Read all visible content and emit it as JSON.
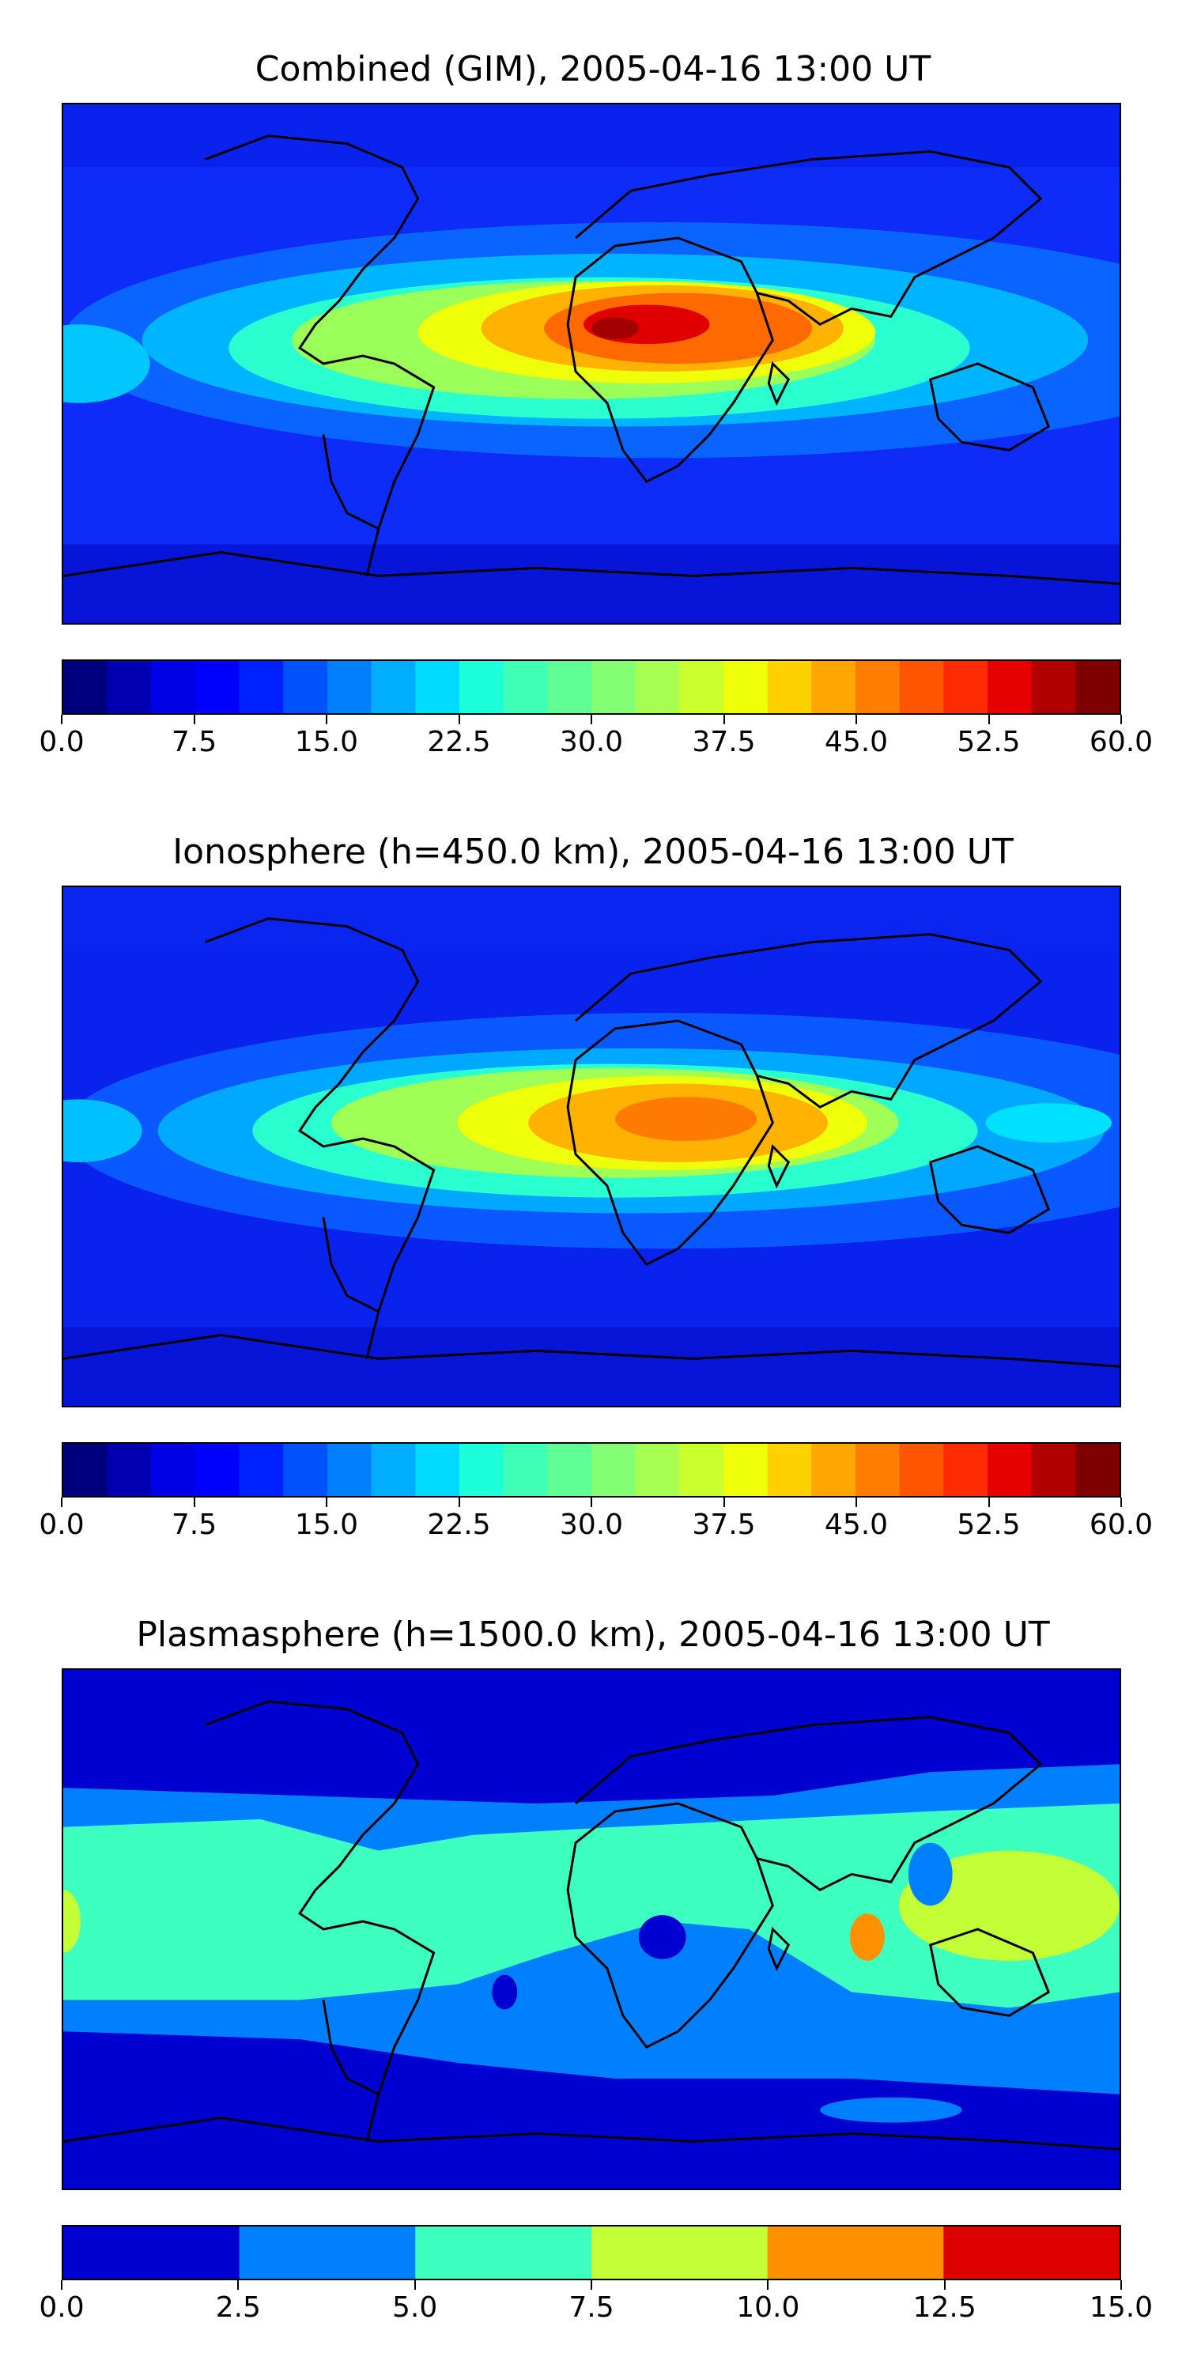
{
  "panels": [
    {
      "title": "Combined (GIM), 2005-04-16 13:00 UT",
      "colorbar": {
        "min": 0.0,
        "max": 60.0,
        "step": 2.5,
        "tick_labels": [
          "0.0",
          "7.5",
          "15.0",
          "22.5",
          "30.0",
          "37.5",
          "45.0",
          "52.5",
          "60.0"
        ]
      }
    },
    {
      "title": "Ionosphere  (h=450.0 km), 2005-04-16 13:00 UT",
      "colorbar": {
        "min": 0.0,
        "max": 60.0,
        "step": 2.5,
        "tick_labels": [
          "0.0",
          "7.5",
          "15.0",
          "22.5",
          "30.0",
          "37.5",
          "45.0",
          "52.5",
          "60.0"
        ]
      }
    },
    {
      "title": "Plasmasphere (h=1500.0 km), 2005-04-16 13:00 UT",
      "colorbar": {
        "min": 0.0,
        "max": 15.0,
        "step": 2.5,
        "tick_labels": [
          "0.0",
          "2.5",
          "5.0",
          "7.5",
          "10.0",
          "12.5",
          "15.0"
        ]
      }
    }
  ],
  "colormap": "jet",
  "colors": {
    "jet24": [
      "#00007f",
      "#0000b2",
      "#0000e6",
      "#0000ff",
      "#0021ff",
      "#0051ff",
      "#0080ff",
      "#00adff",
      "#00dbff",
      "#1cffda",
      "#3fffb7",
      "#60ff96",
      "#83ff73",
      "#a6ff50",
      "#c9ff2d",
      "#eeff09",
      "#ffd100",
      "#ffa700",
      "#ff7e00",
      "#ff5400",
      "#ff2b00",
      "#e60000",
      "#b20000",
      "#7f0000"
    ],
    "jet6": [
      "#0000d0",
      "#0080ff",
      "#3dffc0",
      "#c3ff36",
      "#ff9000",
      "#dd0000"
    ]
  }
}
